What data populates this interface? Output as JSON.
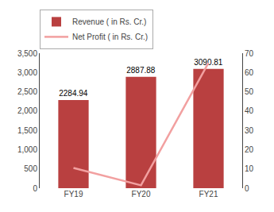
{
  "chart_data": {
    "type": "bar",
    "categories": [
      "FY19",
      "FY20",
      "FY21"
    ],
    "series": [
      {
        "name": "Revenue ( in Rs. Cr.)",
        "type": "bar",
        "color": "#b94040",
        "values": [
          2284.94,
          2887.88,
          3090.81
        ],
        "data_labels": true
      },
      {
        "name": "Net Profit ( in Rs. Cr.)",
        "type": "line",
        "color": "#f2a0a0",
        "values": [
          10.5,
          1.5,
          65.0
        ],
        "axis": "y2"
      }
    ],
    "ylim": [
      0,
      3500
    ],
    "yticks": [
      0,
      500,
      {
        "value": 1000,
        "label": "1,000"
      },
      {
        "value": 1500,
        "label": "1,500"
      },
      {
        "value": 2000,
        "label": "2,000"
      },
      {
        "value": 2500,
        "label": "2,500"
      },
      {
        "value": 3000,
        "label": "3,000"
      },
      {
        "value": 3500,
        "label": "3,500"
      }
    ],
    "y2lim": [
      0,
      70
    ],
    "y2ticks": [
      0,
      10,
      20,
      30,
      40,
      50,
      60,
      70
    ],
    "grid": false,
    "legend": "upper left"
  }
}
